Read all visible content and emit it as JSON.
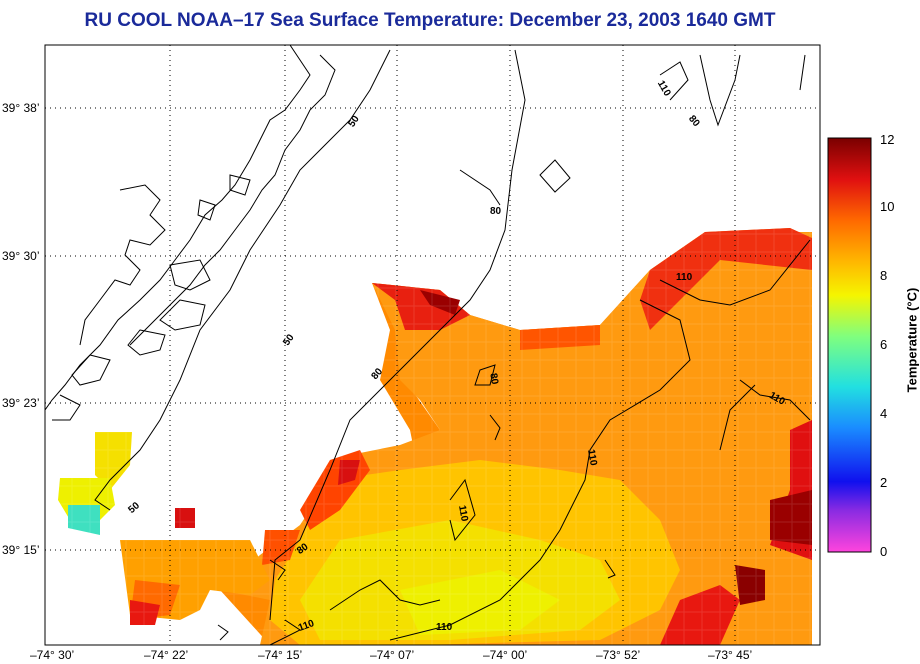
{
  "title": "RU COOL  NOAA–17  Sea Surface Temperature:  December 23, 2003 1640 GMT",
  "map": {
    "lat_labels": [
      "39° 38’",
      "39° 30’",
      "39° 23’",
      "39° 15’"
    ],
    "lon_labels": [
      "–74° 30’",
      "–74° 22’",
      "–74° 15’",
      "–74° 07’",
      "–74° 00’",
      "–73° 52’",
      "–73° 45’"
    ],
    "contour_labels": [
      "50",
      "50",
      "50",
      "80",
      "80",
      "80",
      "80",
      "80",
      "110",
      "110",
      "110",
      "110",
      "110",
      "110",
      "110"
    ]
  },
  "colorbar": {
    "title": "Temperature (°C)",
    "ticks": [
      "0",
      "2",
      "4",
      "6",
      "8",
      "10",
      "12"
    ],
    "colors": [
      "#ff44dd",
      "#8a2be2",
      "#1010ee",
      "#1a8cff",
      "#22e0e0",
      "#7fff7f",
      "#f5f500",
      "#ffb800",
      "#ff6a00",
      "#e01010",
      "#7a0000"
    ]
  }
}
